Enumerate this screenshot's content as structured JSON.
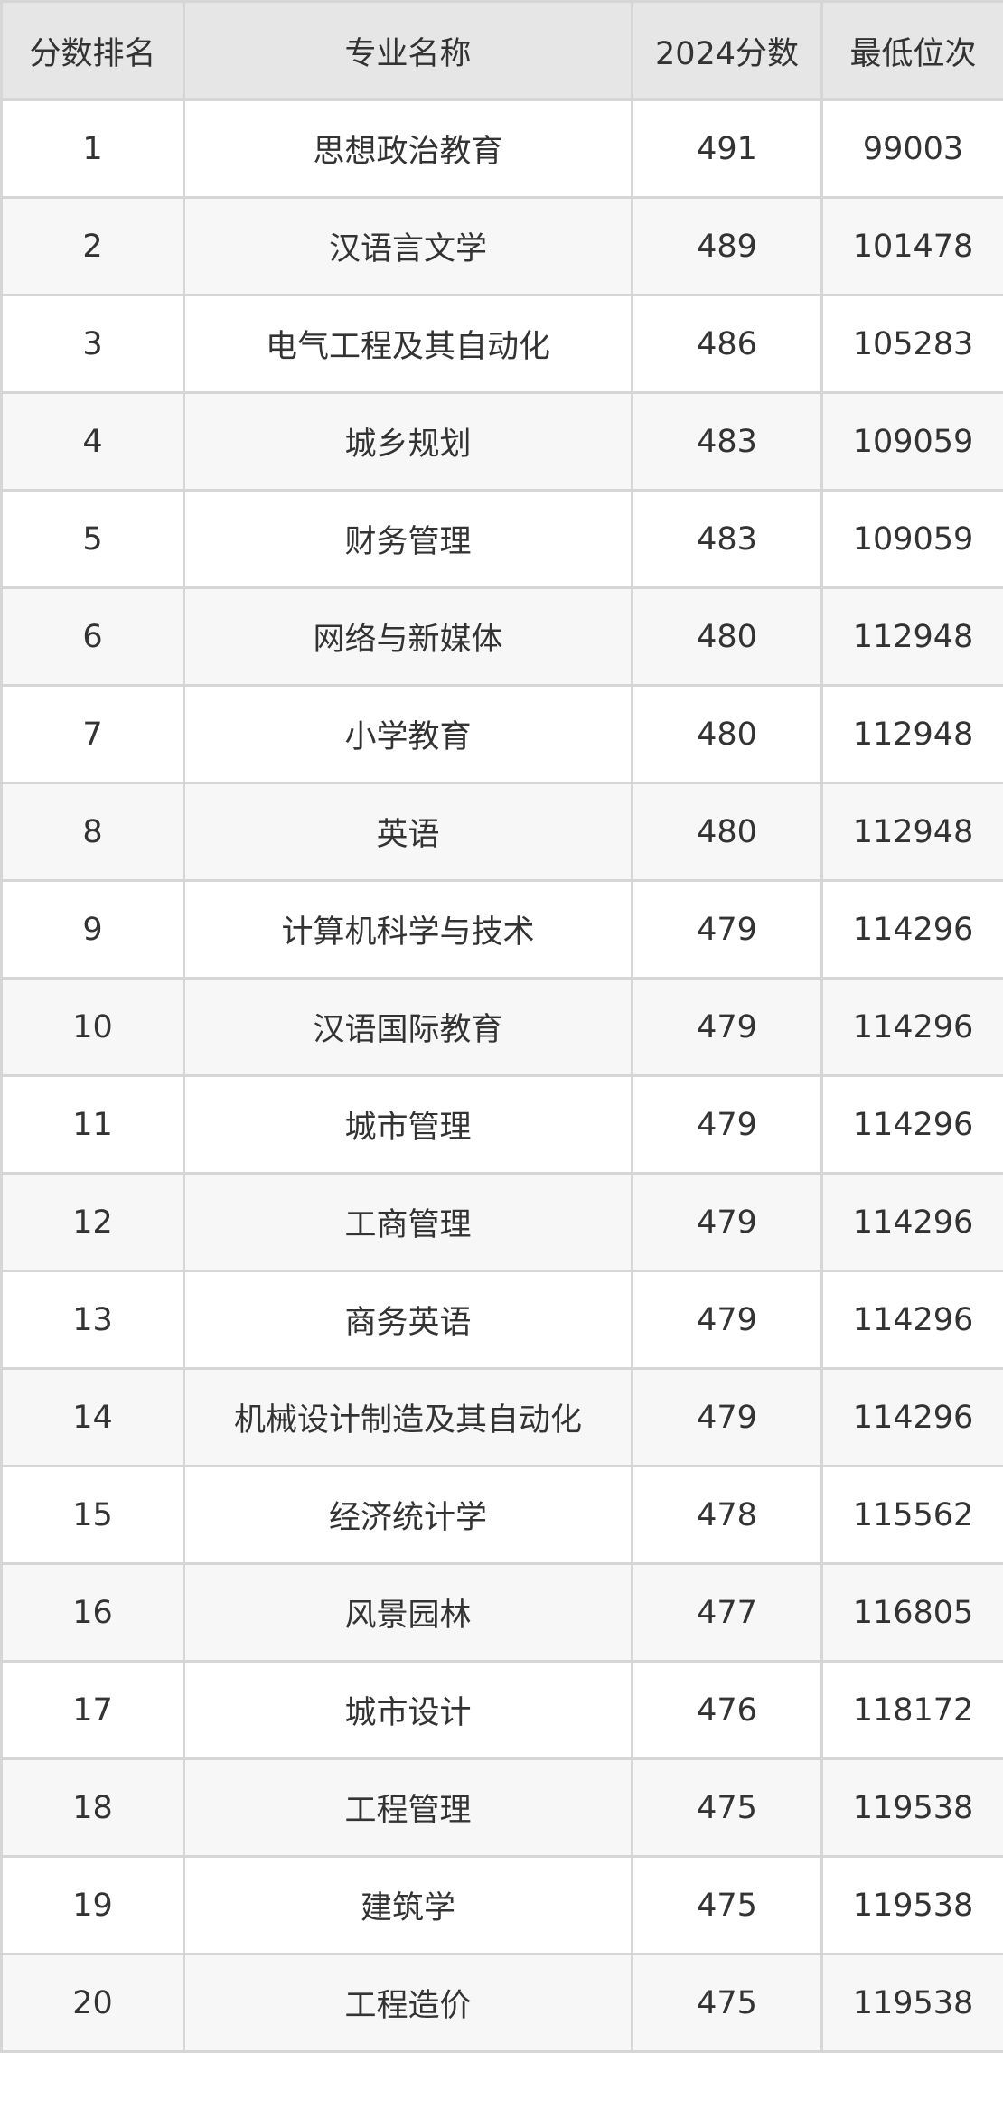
{
  "table": {
    "headers": [
      "分数排名",
      "专业名称",
      "2024分数",
      "最低位次"
    ],
    "rows": [
      [
        "1",
        "思想政治教育",
        "491",
        "99003"
      ],
      [
        "2",
        "汉语言文学",
        "489",
        "101478"
      ],
      [
        "3",
        "电气工程及其自动化",
        "486",
        "105283"
      ],
      [
        "4",
        "城乡规划",
        "483",
        "109059"
      ],
      [
        "5",
        "财务管理",
        "483",
        "109059"
      ],
      [
        "6",
        "网络与新媒体",
        "480",
        "112948"
      ],
      [
        "7",
        "小学教育",
        "480",
        "112948"
      ],
      [
        "8",
        "英语",
        "480",
        "112948"
      ],
      [
        "9",
        "计算机科学与技术",
        "479",
        "114296"
      ],
      [
        "10",
        "汉语国际教育",
        "479",
        "114296"
      ],
      [
        "11",
        "城市管理",
        "479",
        "114296"
      ],
      [
        "12",
        "工商管理",
        "479",
        "114296"
      ],
      [
        "13",
        "商务英语",
        "479",
        "114296"
      ],
      [
        "14",
        "机械设计制造及其自动化",
        "479",
        "114296"
      ],
      [
        "15",
        "经济统计学",
        "478",
        "115562"
      ],
      [
        "16",
        "风景园林",
        "477",
        "116805"
      ],
      [
        "17",
        "城市设计",
        "476",
        "118172"
      ],
      [
        "18",
        "工程管理",
        "475",
        "119538"
      ],
      [
        "19",
        "建筑学",
        "475",
        "119538"
      ],
      [
        "20",
        "工程造价",
        "475",
        "119538"
      ]
    ]
  }
}
